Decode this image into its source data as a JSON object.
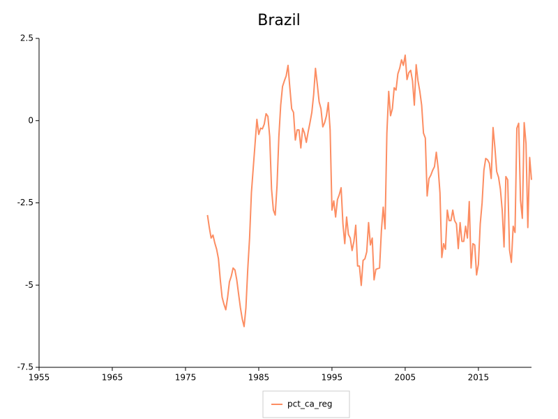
{
  "chart_data": {
    "type": "line",
    "title": "Brazil",
    "legend": "bottom",
    "x": [
      1978,
      1978.25,
      1978.5,
      1978.75,
      1979,
      1979.25,
      1979.5,
      1979.75,
      1980,
      1980.25,
      1980.5,
      1980.75,
      1981,
      1981.25,
      1981.5,
      1981.75,
      1982,
      1982.25,
      1982.5,
      1982.75,
      1983,
      1983.25,
      1983.5,
      1983.75,
      1984,
      1984.25,
      1984.5,
      1984.75,
      1985,
      1985.25,
      1985.5,
      1985.75,
      1986,
      1986.25,
      1986.5,
      1986.75,
      1987,
      1987.25,
      1987.5,
      1987.75,
      1988,
      1988.25,
      1988.5,
      1988.75,
      1989,
      1989.25,
      1989.5,
      1989.75,
      1990,
      1990.25,
      1990.5,
      1990.75,
      1991,
      1991.25,
      1991.5,
      1991.75,
      1992,
      1992.25,
      1992.5,
      1992.75,
      1993,
      1993.25,
      1993.5,
      1993.75,
      1994,
      1994.25,
      1994.5,
      1994.75,
      1995,
      1995.25,
      1995.5,
      1995.75,
      1996,
      1996.25,
      1996.5,
      1996.75,
      1997,
      1997.25,
      1997.5,
      1997.75,
      1998,
      1998.25,
      1998.5,
      1998.75,
      1999,
      1999.25,
      1999.5,
      1999.75,
      2000,
      2000.25,
      2000.5,
      2000.75,
      2001,
      2001.25,
      2001.5,
      2001.75,
      2002,
      2002.25,
      2002.5,
      2002.75,
      2003,
      2003.25,
      2003.5,
      2003.75,
      2004,
      2004.25,
      2004.5,
      2004.75,
      2005,
      2005.25,
      2005.5,
      2005.75,
      2006,
      2006.25,
      2006.5,
      2006.75,
      2007,
      2007.25,
      2007.5,
      2007.75,
      2008,
      2008.25,
      2008.5,
      2008.75,
      2009,
      2009.25,
      2009.5,
      2009.75,
      2010,
      2010.25,
      2010.5,
      2010.75,
      2011,
      2011.25,
      2011.5,
      2011.75,
      2012,
      2012.25,
      2012.5,
      2012.75,
      2013,
      2013.25,
      2013.5,
      2013.75,
      2014,
      2014.25,
      2014.5,
      2014.75,
      2015,
      2015.25,
      2015.5,
      2015.75,
      2016,
      2016.25,
      2016.5,
      2016.75,
      2017,
      2017.25,
      2017.5,
      2017.75,
      2018,
      2018.25,
      2018.5,
      2018.75,
      2019,
      2019.25,
      2019.5,
      2019.75,
      2020,
      2020.25,
      2020.5,
      2020.75,
      2021,
      2021.25,
      2021.5,
      2021.75,
      2022,
      2022.25
    ],
    "series": [
      {
        "name": "pct_ca_reg",
        "color": "#fc8d62",
        "values": [
          -2.87,
          -3.25,
          -3.57,
          -3.48,
          -3.72,
          -3.91,
          -4.2,
          -4.84,
          -5.37,
          -5.58,
          -5.75,
          -5.37,
          -4.9,
          -4.73,
          -4.48,
          -4.54,
          -4.84,
          -5.27,
          -5.69,
          -6.03,
          -6.26,
          -5.69,
          -4.52,
          -3.57,
          -2.19,
          -1.44,
          -0.7,
          0.04,
          -0.42,
          -0.23,
          -0.25,
          -0.11,
          0.21,
          0.13,
          -0.49,
          -2.08,
          -2.72,
          -2.87,
          -1.97,
          -0.49,
          0.47,
          1.04,
          1.21,
          1.36,
          1.68,
          1.0,
          0.36,
          0.25,
          -0.59,
          -0.28,
          -0.28,
          -0.83,
          -0.23,
          -0.38,
          -0.66,
          -0.34,
          -0.06,
          0.25,
          0.79,
          1.59,
          1.1,
          0.57,
          0.36,
          -0.19,
          -0.06,
          0.15,
          0.55,
          -0.28,
          -2.72,
          -2.44,
          -2.93,
          -2.4,
          -2.25,
          -2.04,
          -3.14,
          -3.74,
          -2.93,
          -3.46,
          -3.57,
          -3.95,
          -3.67,
          -3.18,
          -4.42,
          -4.42,
          -5.01,
          -4.25,
          -4.2,
          -3.99,
          -3.1,
          -3.78,
          -3.57,
          -4.84,
          -4.52,
          -4.5,
          -4.48,
          -3.35,
          -2.63,
          -3.29,
          -0.38,
          0.89,
          0.15,
          0.36,
          1.0,
          0.93,
          1.42,
          1.59,
          1.85,
          1.68,
          1.99,
          1.25,
          1.46,
          1.53,
          1.21,
          0.47,
          1.7,
          1.21,
          0.89,
          0.47,
          -0.38,
          -0.53,
          -2.29,
          -1.76,
          -1.66,
          -1.51,
          -1.4,
          -0.96,
          -1.44,
          -2.19,
          -4.16,
          -3.74,
          -3.91,
          -2.72,
          -3.04,
          -3.04,
          -2.72,
          -3.04,
          -3.14,
          -3.89,
          -3.1,
          -3.67,
          -3.67,
          -3.21,
          -3.57,
          -2.46,
          -4.48,
          -3.74,
          -3.78,
          -4.69,
          -4.37,
          -3.14,
          -2.51,
          -1.51,
          -1.15,
          -1.19,
          -1.3,
          -1.76,
          -0.21,
          -0.81,
          -1.55,
          -1.72,
          -2.08,
          -2.72,
          -3.84,
          -1.7,
          -1.8,
          -3.93,
          -4.31,
          -3.21,
          -3.4,
          -0.23,
          -0.08,
          -2.42,
          -2.97,
          -0.06,
          -0.7,
          -3.25,
          -1.12,
          -1.8
        ]
      }
    ],
    "xlim": [
      1955,
      2022.25
    ],
    "xticks": [
      1955,
      1965,
      1975,
      1985,
      1995,
      2005,
      2015
    ],
    "ylim": [
      -7.5,
      2.5
    ],
    "yticks": [
      2.5,
      0,
      -2.5,
      -5,
      -7.5
    ]
  }
}
